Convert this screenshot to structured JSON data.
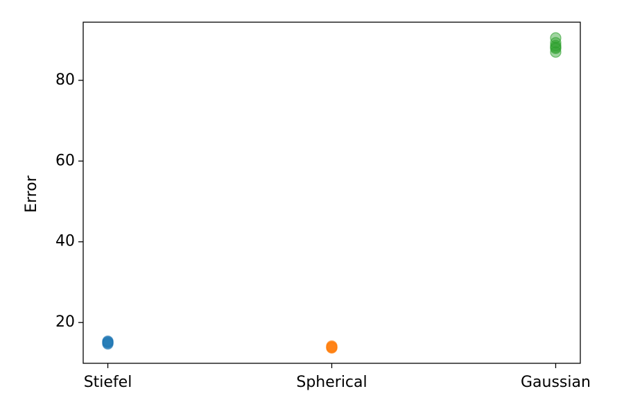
{
  "chart_data": {
    "type": "strip",
    "y_label": "Error",
    "categories": [
      "Stiefel",
      "Spherical",
      "Gaussian"
    ],
    "colors": [
      "#1f77b4",
      "#ff7f0e",
      "#2ca02c"
    ],
    "values": [
      [
        15.4,
        15.1,
        14.9,
        14.7,
        15.2
      ],
      [
        14.2,
        13.9,
        13.7,
        14.0,
        13.8
      ],
      [
        90.5,
        89.3,
        88.6,
        87.9,
        87.0,
        88.2
      ]
    ],
    "ylim": [
      9.9,
      94.4
    ],
    "yticks": [
      20,
      40,
      60,
      80
    ]
  }
}
